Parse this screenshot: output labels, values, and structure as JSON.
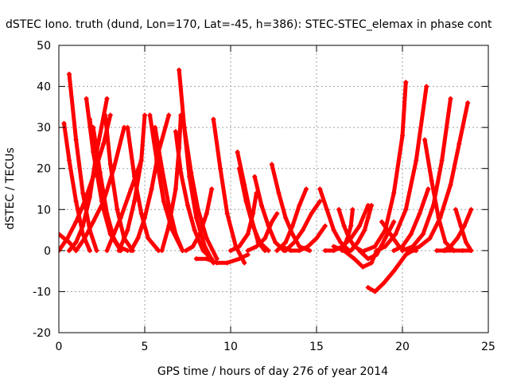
{
  "chart_data": {
    "type": "line",
    "title": "dSTEC Iono. truth (dund, Lon=170, Lat=-45, h=386): STEC-STEC_elemax in phase cont",
    "xlabel": "GPS time / hours of day 276 of year 2014",
    "ylabel": "dSTEC  / TECUs",
    "xlim": [
      0,
      25
    ],
    "ylim": [
      -20,
      50
    ],
    "xticks": [
      0,
      5,
      10,
      15,
      20,
      25
    ],
    "yticks": [
      -20,
      -10,
      0,
      10,
      20,
      30,
      40,
      50
    ],
    "grid": true,
    "series_color": "#ff0000",
    "marker": "plus",
    "series": [
      {
        "x": [
          0.0,
          0.3,
          0.6,
          1.0
        ],
        "y": [
          4,
          3,
          2,
          0
        ]
      },
      {
        "x": [
          0.3,
          0.6,
          1.0,
          1.4,
          1.8
        ],
        "y": [
          31,
          22,
          12,
          4,
          0
        ]
      },
      {
        "x": [
          0.6,
          1.0,
          1.4,
          1.8,
          2.2
        ],
        "y": [
          43,
          27,
          14,
          5,
          0
        ]
      },
      {
        "x": [
          0.6,
          1.0,
          1.4,
          1.8,
          2.2,
          2.8
        ],
        "y": [
          0,
          2,
          6,
          13,
          24,
          37
        ]
      },
      {
        "x": [
          1.6,
          2.0,
          2.5,
          3.0,
          3.6
        ],
        "y": [
          37,
          24,
          12,
          4,
          0
        ]
      },
      {
        "x": [
          1.8,
          2.2,
          2.6,
          3.0,
          3.5,
          4.0
        ],
        "y": [
          32,
          20,
          10,
          4,
          1,
          0
        ]
      },
      {
        "x": [
          2.0,
          2.4,
          2.8,
          3.2,
          3.6
        ],
        "y": [
          30,
          19,
          9,
          3,
          0
        ]
      },
      {
        "x": [
          2.7,
          3.0,
          3.4,
          3.8,
          4.3
        ],
        "y": [
          33,
          21,
          10,
          3,
          0
        ]
      },
      {
        "x": [
          0.0,
          0.5,
          1.0,
          1.5,
          2.0,
          2.6,
          3.0
        ],
        "y": [
          0,
          3,
          7,
          12,
          18,
          26,
          33
        ]
      },
      {
        "x": [
          1.0,
          1.5,
          2.0,
          2.6,
          3.2,
          3.8
        ],
        "y": [
          0,
          3,
          7,
          12,
          20,
          30
        ]
      },
      {
        "x": [
          2.8,
          3.2,
          3.6,
          4.2,
          4.8
        ],
        "y": [
          0,
          4,
          8,
          15,
          22
        ]
      },
      {
        "x": [
          4.0,
          4.4,
          4.8,
          5.2,
          5.8
        ],
        "y": [
          30,
          18,
          9,
          3,
          0
        ]
      },
      {
        "x": [
          3.5,
          4.0,
          4.4,
          4.8,
          5.0
        ],
        "y": [
          0,
          5,
          12,
          22,
          33
        ]
      },
      {
        "x": [
          4.2,
          4.6,
          5.0,
          5.4,
          5.8,
          6.4
        ],
        "y": [
          0,
          3,
          8,
          15,
          24,
          33
        ]
      },
      {
        "x": [
          5.3,
          5.7,
          6.1,
          6.6,
          7.2
        ],
        "y": [
          33,
          22,
          12,
          5,
          0
        ]
      },
      {
        "x": [
          5.6,
          6.0,
          6.4,
          6.8,
          7.2
        ],
        "y": [
          30,
          20,
          11,
          4,
          0
        ]
      },
      {
        "x": [
          6.0,
          6.4,
          6.8,
          7.0,
          7.1
        ],
        "y": [
          0,
          6,
          15,
          25,
          33
        ]
      },
      {
        "x": [
          7.0,
          7.3,
          7.6,
          8.0,
          8.5,
          9.0
        ],
        "y": [
          44,
          30,
          18,
          8,
          1,
          -3
        ]
      },
      {
        "x": [
          6.8,
          7.1,
          7.5,
          7.9,
          8.4,
          8.9
        ],
        "y": [
          29,
          19,
          11,
          5,
          0,
          -2
        ]
      },
      {
        "x": [
          7.3,
          7.7,
          8.1,
          8.6,
          9.2
        ],
        "y": [
          30,
          19,
          10,
          3,
          -2
        ]
      },
      {
        "x": [
          7.4,
          7.8,
          8.2,
          8.6,
          8.9
        ],
        "y": [
          0,
          1,
          4,
          9,
          15
        ]
      },
      {
        "x": [
          9.0,
          9.4,
          9.8,
          10.3,
          10.8
        ],
        "y": [
          32,
          20,
          9,
          1,
          -3
        ]
      },
      {
        "x": [
          8.0,
          8.6,
          9.2,
          9.8,
          10.5,
          11.0
        ],
        "y": [
          -2,
          -2,
          -3,
          -3,
          -2,
          -1
        ]
      },
      {
        "x": [
          10.4,
          10.8,
          11.2,
          11.6,
          12.0
        ],
        "y": [
          24,
          16,
          8,
          2,
          0
        ]
      },
      {
        "x": [
          10.5,
          10.9,
          11.3,
          11.7,
          12.2
        ],
        "y": [
          20,
          12,
          6,
          2,
          0
        ]
      },
      {
        "x": [
          11.4,
          11.8,
          12.2,
          12.6,
          13.1
        ],
        "y": [
          18,
          11,
          6,
          2,
          0
        ]
      },
      {
        "x": [
          10.0,
          10.5,
          11.0,
          11.3,
          11.5
        ],
        "y": [
          0,
          1,
          4,
          9,
          14
        ]
      },
      {
        "x": [
          11.0,
          11.5,
          12.0,
          12.4,
          12.7
        ],
        "y": [
          0,
          1,
          3,
          7,
          9
        ]
      },
      {
        "x": [
          12.4,
          12.8,
          13.2,
          13.6,
          14.0,
          14.6
        ],
        "y": [
          21,
          14,
          8,
          4,
          1,
          0
        ]
      },
      {
        "x": [
          12.7,
          13.2,
          13.6,
          14.0,
          14.4
        ],
        "y": [
          0,
          2,
          6,
          11,
          15
        ]
      },
      {
        "x": [
          13.2,
          13.7,
          14.2,
          14.7,
          15.2
        ],
        "y": [
          0,
          2,
          5,
          9,
          12
        ]
      },
      {
        "x": [
          13.0,
          13.5,
          14.0,
          14.5,
          15.0,
          15.5
        ],
        "y": [
          1,
          0,
          0,
          1,
          3,
          6
        ]
      },
      {
        "x": [
          15.2,
          15.6,
          16.0,
          16.4,
          16.9
        ],
        "y": [
          15,
          10,
          5,
          2,
          0
        ]
      },
      {
        "x": [
          16.3,
          16.6,
          16.9,
          17.2,
          17.6
        ],
        "y": [
          10,
          6,
          3,
          1,
          0
        ]
      },
      {
        "x": [
          15.5,
          16.0,
          16.5,
          17.0,
          17.5,
          18.0
        ],
        "y": [
          0,
          0,
          1,
          3,
          6,
          11
        ]
      },
      {
        "x": [
          16.5,
          16.8,
          17.0,
          17.1
        ],
        "y": [
          0,
          3,
          6,
          10
        ]
      },
      {
        "x": [
          16.0,
          16.6,
          17.2,
          17.7,
          18.2,
          18.5
        ],
        "y": [
          1,
          0,
          -2,
          -4,
          -3,
          0
        ]
      },
      {
        "x": [
          17.0,
          17.4,
          17.8,
          18.0,
          18.2
        ],
        "y": [
          0,
          2,
          5,
          8,
          11
        ]
      },
      {
        "x": [
          18.0,
          18.4,
          18.9,
          19.5,
          20.2,
          20.6
        ],
        "y": [
          -9,
          -10,
          -8,
          -5,
          -1,
          0
        ]
      },
      {
        "x": [
          17.5,
          18.0,
          18.5,
          19.0,
          19.5
        ],
        "y": [
          0,
          -2,
          -1,
          3,
          7
        ]
      },
      {
        "x": [
          18.8,
          19.3,
          19.8,
          20.3,
          20.8
        ],
        "y": [
          7,
          4,
          1,
          0,
          0
        ]
      },
      {
        "x": [
          17.8,
          18.4,
          19.0,
          19.5,
          20.0,
          20.2
        ],
        "y": [
          0,
          1,
          5,
          14,
          28,
          41
        ]
      },
      {
        "x": [
          18.5,
          19.0,
          19.6,
          20.2,
          20.8,
          21.4
        ],
        "y": [
          0,
          1,
          4,
          10,
          22,
          40
        ]
      },
      {
        "x": [
          19.5,
          20.0,
          20.5,
          21.0,
          21.5
        ],
        "y": [
          0,
          1,
          4,
          9,
          15
        ]
      },
      {
        "x": [
          20.0,
          20.6,
          21.2,
          21.8,
          22.3,
          22.8
        ],
        "y": [
          0,
          1,
          4,
          11,
          22,
          37
        ]
      },
      {
        "x": [
          20.5,
          21.0,
          21.6,
          22.2,
          22.8,
          23.3,
          23.8
        ],
        "y": [
          0,
          1,
          3,
          8,
          16,
          26,
          36
        ]
      },
      {
        "x": [
          21.3,
          21.7,
          22.1,
          22.5,
          23.0
        ],
        "y": [
          27,
          17,
          8,
          2,
          0
        ]
      },
      {
        "x": [
          22.4,
          22.8,
          23.2,
          23.6,
          24.0
        ],
        "y": [
          0,
          1,
          3,
          6,
          10
        ]
      },
      {
        "x": [
          23.1,
          23.4,
          23.7,
          24.0
        ],
        "y": [
          10,
          6,
          2,
          0
        ]
      },
      {
        "x": [
          22.0,
          22.5,
          23.0,
          23.5,
          24.0
        ],
        "y": [
          0,
          0,
          0,
          0,
          0
        ]
      }
    ]
  }
}
